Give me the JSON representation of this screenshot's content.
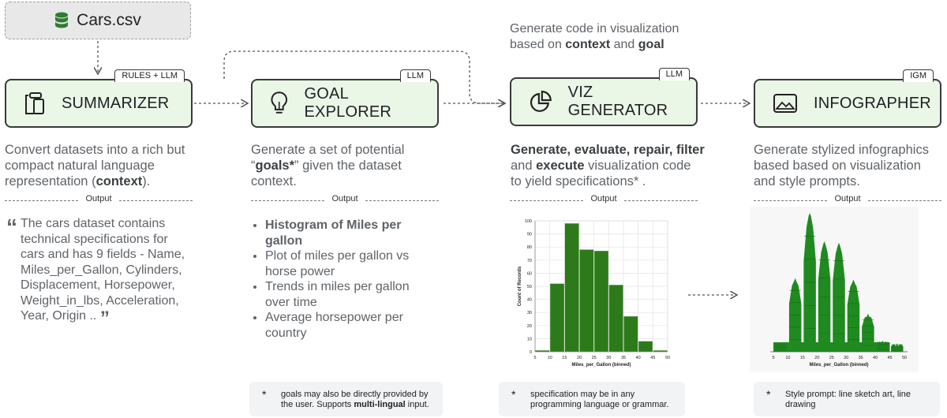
{
  "source": {
    "label": "Cars.csv",
    "icon": "database-icon"
  },
  "header_note": {
    "line1": "Generate code in visualization",
    "line2_pre": "based on ",
    "line2_bold1": "context",
    "line2_mid": " and ",
    "line2_bold2": "goal"
  },
  "output_label": "Output",
  "stages": [
    {
      "title": "SUMMARIZER",
      "tag": "RULES + LLM",
      "icon": "clipboard-icon"
    },
    {
      "title": "GOAL EXPLORER",
      "tag": "LLM",
      "icon": "lightbulb-icon"
    },
    {
      "title": "VIZ GENERATOR",
      "tag": "LLM",
      "icon": "pie-chart-icon"
    },
    {
      "title": "INFOGRAPHER",
      "tag": "IGM",
      "icon": "image-icon"
    }
  ],
  "descriptions": {
    "summarizer": {
      "l1": "Convert datasets into a rich but",
      "l2": "compact natural language",
      "l3_pre": "representation (",
      "l3_bold": "context",
      "l3_post": ")."
    },
    "goal": {
      "l1": "Generate a set of potential",
      "l2_pre": "“",
      "l2_bold": "goals*",
      "l2_post": "” given the dataset",
      "l3": "context."
    },
    "viz": {
      "l1_bold": "Generate, evaluate, repair, filter",
      "l2_pre": "and ",
      "l2_bold": "execute",
      "l2_post": " visualization code",
      "l3": "to yield specifications* ."
    },
    "info": {
      "l1": "Generate stylized infographics",
      "l2": "based based on visualization",
      "l3": "and style prompts."
    }
  },
  "summary_lines": [
    "The cars dataset contains",
    "technical specifications for",
    "cars and has 9 fields - Name,",
    "Miles_per_Gallon, Cylinders,",
    "Displacement, Horsepower,",
    "Weight_in_lbs, Acceleration,",
    "Year, Origin .."
  ],
  "goals": [
    {
      "l1": "Histogram of Miles per",
      "l2": "gallon",
      "bold": true
    },
    {
      "l1": "Plot of miles per gallon vs",
      "l2": "horse power",
      "bold": false
    },
    {
      "l1": "Trends in miles per gallon",
      "l2": "over time",
      "bold": false
    },
    {
      "l1": "Average horsepower per",
      "l2": "country",
      "bold": false
    }
  ],
  "notes": {
    "goal": {
      "pre": "goals may also be directly provided by the user. Supports ",
      "bold": "multi-lingual",
      "post": " input."
    },
    "viz": {
      "text": "specification may be in any programming language or grammar."
    },
    "info": {
      "text": "Style prompt: line sketch art, line drawing"
    }
  },
  "chart_data": [
    {
      "type": "bar",
      "xlabel": "Miles_per_Gallon (binned)",
      "ylabel": "Count of Records",
      "bin_edges": [
        5,
        10,
        15,
        20,
        25,
        30,
        35,
        40,
        45,
        50
      ],
      "values": [
        1,
        52,
        98,
        78,
        77,
        51,
        27,
        8,
        1
      ],
      "x_ticks": [
        5,
        10,
        15,
        20,
        25,
        30,
        35,
        40,
        45,
        50
      ],
      "y_ticks": [
        0,
        10,
        20,
        30,
        40,
        50,
        60,
        70,
        80,
        90,
        100
      ],
      "xlim": [
        5,
        50
      ],
      "ylim": [
        0,
        100
      ],
      "grid": true,
      "color": "#2d7a1a"
    },
    {
      "type": "bar",
      "style": "stylized infographic",
      "xlabel": "Miles_per_Gallon (binned)",
      "x_ticks": [
        5,
        10,
        15,
        20,
        25,
        30,
        35,
        40,
        45,
        50
      ],
      "xlim": [
        5,
        50
      ],
      "color": "#1f8a1f"
    }
  ]
}
